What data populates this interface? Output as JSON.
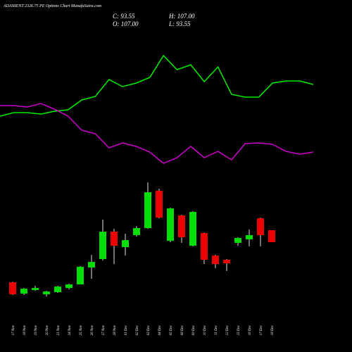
{
  "chart_data": {
    "type": "candlestick",
    "title": "ADANIENT 2326.75 PE Options  Chart MunafaSutra.com",
    "ohlc_labels": [
      "C: 93.55",
      "H: 107.00",
      "O: 107.00",
      "L: 93.55"
    ],
    "categories": [
      "17 Nov",
      "18 Nov",
      "19 Nov",
      "20 Nov",
      "21 Nov",
      "24 Nov",
      "25 Nov",
      "26 Nov",
      "27 Nov",
      "28 Nov",
      "01 Dec",
      "02 Dec",
      "03 Dec",
      "04 Dec",
      "05 Dec",
      "08 Dec",
      "09 Dec",
      "10 Dec",
      "11 Dec",
      "12 Dec",
      "15 Dec",
      "16 Dec",
      "17 Dec",
      "18 Dec"
    ],
    "open": [
      48.5,
      35.8,
      39.8,
      35,
      37.4,
      42.1,
      46.1,
      65.1,
      74.6,
      105.4,
      88,
      101.5,
      109.4,
      151.3,
      95.1,
      123.6,
      89.6,
      103.8,
      78.5,
      73.8,
      92.8,
      96.7,
      120.4,
      107
    ],
    "high": [
      49.2,
      42.1,
      44.5,
      39,
      44.5,
      46.9,
      66.7,
      79.3,
      118.9,
      108.6,
      103,
      111.7,
      160.8,
      153.7,
      132.3,
      124.4,
      128.4,
      104.6,
      79.3,
      74.6,
      99.1,
      107.8,
      121.2,
      107
    ],
    "low": [
      34.2,
      34.2,
      39,
      32.6,
      36.6,
      40.5,
      46.1,
      52.4,
      73,
      69,
      78.5,
      99.9,
      108.6,
      120.4,
      93.6,
      92.8,
      88.8,
      69,
      64.3,
      61.1,
      89.6,
      88.8,
      88.8,
      93.55
    ],
    "close": [
      35,
      41.3,
      42.1,
      38.2,
      43.7,
      46.1,
      65.9,
      71.4,
      105.4,
      89.6,
      95.9,
      109.4,
      149.7,
      121.2,
      131.5,
      99.1,
      127.6,
      73.8,
      69,
      69.8,
      98.3,
      101.5,
      101.5,
      93.55
    ],
    "ylim": [
      20,
      170
    ],
    "up_color": "#00dd00",
    "down_color": "#ee0000",
    "indicator_ylim": [
      0,
      100
    ],
    "indicators": [
      {
        "color": "#00ee00",
        "values": [
          42.5,
          45,
          45,
          44,
          46,
          47,
          54,
          56.5,
          68.5,
          63.5,
          66,
          70,
          85.5,
          75.5,
          79,
          67,
          77.5,
          58,
          56,
          56,
          66,
          67.5,
          67.5,
          65
        ]
      },
      {
        "color": "#cc00cc",
        "values": [
          50,
          50,
          49,
          51.5,
          47.5,
          42.5,
          32.5,
          30,
          20,
          23.5,
          21,
          17,
          9,
          13,
          21,
          13,
          17.5,
          11.5,
          23,
          23.5,
          22.5,
          17.5,
          15.5,
          17
        ]
      }
    ]
  }
}
